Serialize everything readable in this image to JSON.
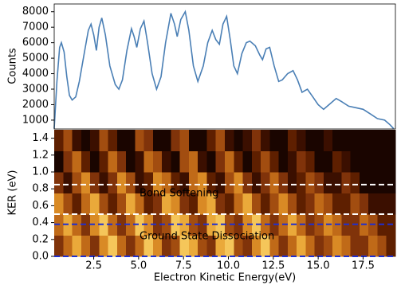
{
  "chart_data": [
    {
      "type": "line",
      "ylabel": "Counts",
      "color": "#4a7fb5",
      "xlim": [
        0.3,
        19.3
      ],
      "ylim": [
        430,
        8500
      ],
      "yticks": [
        1000,
        2000,
        3000,
        4000,
        5000,
        6000,
        7000,
        8000
      ],
      "x": [
        0.3,
        0.45,
        0.6,
        0.7,
        0.85,
        1.0,
        1.15,
        1.3,
        1.5,
        1.7,
        2.0,
        2.2,
        2.35,
        2.5,
        2.65,
        2.8,
        2.95,
        3.15,
        3.4,
        3.7,
        3.9,
        4.1,
        4.35,
        4.6,
        4.75,
        4.9,
        5.1,
        5.3,
        5.5,
        5.75,
        6.0,
        6.25,
        6.5,
        6.8,
        7.0,
        7.15,
        7.35,
        7.6,
        7.8,
        8.05,
        8.3,
        8.6,
        8.85,
        9.1,
        9.3,
        9.5,
        9.7,
        9.9,
        10.1,
        10.3,
        10.5,
        10.75,
        11.0,
        11.2,
        11.5,
        11.75,
        11.9,
        12.1,
        12.3,
        12.55,
        12.8,
        13.0,
        13.3,
        13.6,
        13.85,
        14.1,
        14.4,
        14.7,
        15.0,
        15.3,
        15.6,
        16.0,
        16.3,
        16.7,
        17.1,
        17.5,
        17.9,
        18.3,
        18.7,
        19.0,
        19.2
      ],
      "values": [
        450,
        3500,
        5700,
        6000,
        5400,
        3800,
        2600,
        2300,
        2500,
        3500,
        5500,
        6800,
        7200,
        6500,
        5500,
        7000,
        7600,
        6500,
        4500,
        3300,
        3000,
        3600,
        5500,
        6900,
        6400,
        5700,
        6900,
        7400,
        6000,
        4000,
        3000,
        3800,
        6000,
        7900,
        7200,
        6400,
        7500,
        8000,
        6800,
        4500,
        3500,
        4500,
        6000,
        6800,
        6200,
        5900,
        7200,
        7700,
        6200,
        4500,
        4000,
        5300,
        6000,
        6100,
        5800,
        5200,
        4900,
        5600,
        5700,
        4500,
        3500,
        3600,
        4000,
        4200,
        3600,
        2800,
        3000,
        2500,
        2000,
        1700,
        2000,
        2400,
        2200,
        1900,
        1800,
        1700,
        1400,
        1100,
        1000,
        700,
        450
      ]
    },
    {
      "type": "heatmap",
      "xlabel": "Electron Kinetic Energy(eV)",
      "ylabel": "KER (eV)",
      "xlim": [
        0.3,
        19.3
      ],
      "ylim": [
        0,
        1.5
      ],
      "xticks": [
        2.5,
        {
          "value": 5,
          "label": "5.0"
        },
        7.5,
        {
          "value": 10,
          "label": "10.0"
        },
        12.5,
        {
          "value": 15,
          "label": "15.0"
        },
        17.5
      ],
      "yticks": [
        {
          "value": 0,
          "label": "0.0"
        },
        0.2,
        0.4,
        0.6,
        0.8,
        {
          "value": 1,
          "label": "1.0"
        },
        1.2,
        1.4
      ],
      "x_edges": [
        0.3,
        0.8,
        1.3,
        1.8,
        2.3,
        2.8,
        3.3,
        3.8,
        4.3,
        4.8,
        5.3,
        5.8,
        6.3,
        6.8,
        7.3,
        7.8,
        8.3,
        8.8,
        9.3,
        9.8,
        10.3,
        10.8,
        11.3,
        11.8,
        12.3,
        12.8,
        13.3,
        13.8,
        14.3,
        14.8,
        15.3,
        15.8,
        16.3,
        16.8,
        17.3,
        17.8,
        18.3,
        18.8,
        19.3
      ],
      "y_edges": [
        0,
        0.25,
        0.5,
        0.75,
        1,
        1.25,
        1.5
      ],
      "colors": [
        "#1a0500",
        "#3b0f00",
        "#5e1f00",
        "#80330a",
        "#a24d10",
        "#c06a18",
        "#d98a25",
        "#eaa93a",
        "#f5c65a",
        "#fde48a"
      ],
      "z": [
        [
          3,
          5,
          7,
          5,
          3,
          6,
          8,
          5,
          3,
          5,
          8,
          6,
          3,
          4,
          8,
          7,
          4,
          3,
          7,
          8,
          4,
          3,
          6,
          8,
          5,
          3,
          5,
          7,
          5,
          3,
          4,
          6,
          5,
          3,
          3,
          5,
          4,
          2
        ],
        [
          5,
          7,
          5,
          3,
          6,
          8,
          5,
          3,
          5,
          8,
          6,
          3,
          4,
          8,
          7,
          4,
          3,
          7,
          8,
          4,
          3,
          6,
          8,
          5,
          3,
          5,
          7,
          5,
          3,
          4,
          6,
          5,
          3,
          3,
          5,
          4,
          2,
          2
        ],
        [
          6,
          4,
          2,
          5,
          7,
          4,
          2,
          4,
          7,
          5,
          2,
          3,
          7,
          6,
          3,
          2,
          6,
          7,
          3,
          2,
          5,
          7,
          4,
          2,
          4,
          6,
          4,
          2,
          3,
          5,
          4,
          2,
          2,
          4,
          3,
          1,
          1,
          1
        ],
        [
          3,
          1,
          4,
          6,
          3,
          1,
          3,
          6,
          4,
          1,
          2,
          6,
          5,
          2,
          1,
          5,
          6,
          2,
          1,
          4,
          6,
          3,
          1,
          3,
          5,
          3,
          1,
          2,
          4,
          3,
          1,
          1,
          3,
          2,
          0,
          0,
          0,
          0
        ],
        [
          0,
          3,
          5,
          2,
          0,
          2,
          5,
          3,
          0,
          1,
          5,
          4,
          1,
          0,
          4,
          5,
          1,
          0,
          3,
          5,
          2,
          0,
          2,
          4,
          2,
          0,
          1,
          3,
          2,
          0,
          0,
          2,
          1,
          0,
          0,
          0,
          0,
          0
        ],
        [
          2,
          4,
          1,
          0,
          1,
          4,
          2,
          0,
          0,
          4,
          3,
          0,
          0,
          3,
          4,
          0,
          0,
          2,
          4,
          1,
          0,
          1,
          3,
          1,
          0,
          0,
          2,
          1,
          0,
          0,
          1,
          0,
          0,
          0,
          0,
          0,
          0,
          0
        ]
      ],
      "lines": [
        {
          "y": 0.85,
          "color": "#ffffff"
        },
        {
          "y": 0.5,
          "color": "#ffffff"
        },
        {
          "y": 0.38,
          "color": "#1f2fd0"
        },
        {
          "y": 0,
          "color": "#1f2fd0"
        }
      ],
      "annotations": [
        "Bond Softening",
        "Ground State Dissociation"
      ]
    }
  ]
}
